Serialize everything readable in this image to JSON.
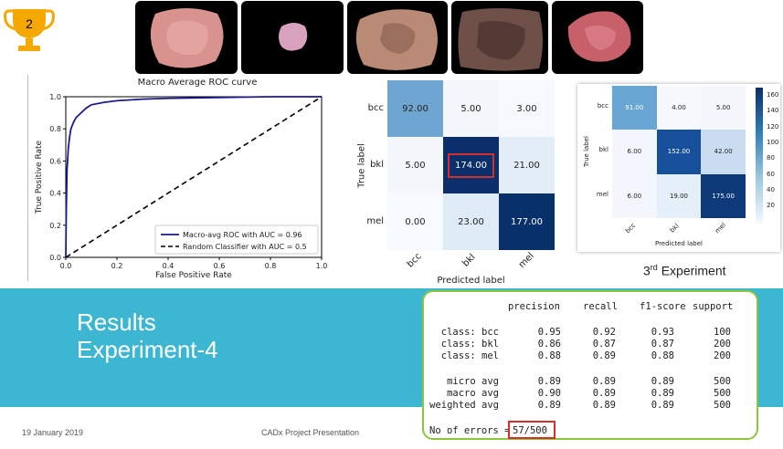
{
  "trophy": {
    "number": "2",
    "icon": "trophy-icon",
    "color": "#f5a800"
  },
  "lesion_images": [
    {
      "name": "lesion-image-1",
      "color": "#d9938f"
    },
    {
      "name": "lesion-image-2",
      "color": "#d8a2bf"
    },
    {
      "name": "lesion-image-3",
      "color": "#b98a76"
    },
    {
      "name": "lesion-image-4",
      "color": "#6e5048"
    },
    {
      "name": "lesion-image-5",
      "color": "#c8606a"
    }
  ],
  "roc_chart": {
    "title": "Macro Average ROC curve",
    "xlabel": "False Positive Rate",
    "ylabel": "True Positive Rate",
    "xticks": [
      "0.0",
      "0.2",
      "0.4",
      "0.6",
      "0.8",
      "1.0"
    ],
    "yticks": [
      "0.0",
      "0.2",
      "0.4",
      "0.6",
      "0.8",
      "1.0"
    ],
    "legend": [
      "Macro-avg ROC with AUC = 0.96",
      "Random Classifier with AUC = 0.5"
    ]
  },
  "chart_data": {
    "type": "line",
    "title": "Macro Average ROC curve",
    "xlabel": "False Positive Rate",
    "ylabel": "True Positive Rate",
    "xlim": [
      0,
      1
    ],
    "ylim": [
      0,
      1
    ],
    "legend_position": "bottom-right",
    "series": [
      {
        "name": "Macro-avg ROC with AUC = 0.96",
        "color": "#1a1a8c",
        "style": "solid",
        "x": [
          0,
          0.002,
          0.005,
          0.01,
          0.015,
          0.02,
          0.03,
          0.04,
          0.06,
          0.08,
          0.1,
          0.15,
          0.2,
          0.3,
          0.4,
          0.6,
          0.8,
          1.0
        ],
        "y": [
          0,
          0.3,
          0.55,
          0.68,
          0.75,
          0.8,
          0.84,
          0.87,
          0.9,
          0.93,
          0.95,
          0.965,
          0.975,
          0.985,
          0.99,
          0.995,
          1.0,
          1.0
        ]
      },
      {
        "name": "Random Classifier with AUC = 0.5",
        "color": "#000000",
        "style": "dashed",
        "x": [
          0,
          1
        ],
        "y": [
          0,
          1
        ]
      }
    ]
  },
  "confusion_matrix": {
    "ylabel": "True label",
    "xlabel": "Predicted label",
    "labels": [
      "bcc",
      "bkl",
      "mel"
    ],
    "values": [
      [
        "92.00",
        "5.00",
        "3.00"
      ],
      [
        "5.00",
        "174.00",
        "21.00"
      ],
      [
        "0.00",
        "23.00",
        "177.00"
      ]
    ],
    "colors": [
      [
        "#6ea6d1",
        "#f4f8fd",
        "#f6f9fe"
      ],
      [
        "#f4f8fd",
        "#0a2f6b",
        "#e2edf8"
      ],
      [
        "#f7fbff",
        "#deebf7",
        "#08306b"
      ]
    ],
    "text_colors": [
      [
        "#222222",
        "#222222",
        "#222222"
      ],
      [
        "#222222",
        "#ffffff",
        "#222222"
      ],
      [
        "#222222",
        "#222222",
        "#ffffff"
      ]
    ],
    "highlight_color": "#d32f2f"
  },
  "confusion_matrix_3": {
    "ylabel": "True label",
    "xlabel": "Predicted label",
    "labels": [
      "bcc",
      "bkl",
      "mel"
    ],
    "values": [
      [
        "91.00",
        "4.00",
        "5.00"
      ],
      [
        "6.00",
        "152.00",
        "42.00"
      ],
      [
        "6.00",
        "19.00",
        "175.00"
      ]
    ],
    "colors": [
      [
        "#6aa6d3",
        "#f5f9fe",
        "#f4f8fd"
      ],
      [
        "#f3f7fd",
        "#16509a",
        "#cadcf0"
      ],
      [
        "#f3f7fd",
        "#e5eff9",
        "#0e3a7a"
      ]
    ],
    "text_colors": [
      [
        "#ffffff",
        "#222222",
        "#222222"
      ],
      [
        "#222222",
        "#ffffff",
        "#222222"
      ],
      [
        "#222222",
        "#222222",
        "#ffffff"
      ]
    ],
    "colorbar_ticks": [
      "160",
      "140",
      "120",
      "100",
      "80",
      "60",
      "40",
      "20"
    ],
    "caption_main": "3",
    "caption_sup": "rd",
    "caption_rest": " Experiment"
  },
  "results": {
    "line1": "Results",
    "line2": "Experiment-4",
    "band_color": "#3db6d1"
  },
  "report": {
    "headers": [
      "precision",
      "recall",
      "f1-score",
      "support"
    ],
    "rows": [
      {
        "label": "class: bcc",
        "values": [
          "0.95",
          "0.92",
          "0.93",
          "100"
        ]
      },
      {
        "label": "class: bkl",
        "values": [
          "0.86",
          "0.87",
          "0.87",
          "200"
        ]
      },
      {
        "label": "class: mel",
        "values": [
          "0.88",
          "0.89",
          "0.88",
          "200"
        ]
      },
      {
        "label": "micro avg",
        "values": [
          "0.89",
          "0.89",
          "0.89",
          "500"
        ]
      },
      {
        "label": "macro avg",
        "values": [
          "0.90",
          "0.89",
          "0.89",
          "500"
        ]
      },
      {
        "label": "weighted avg",
        "values": [
          "0.89",
          "0.89",
          "0.89",
          "500"
        ]
      }
    ],
    "errors_label": "No of errors =",
    "errors_value": "57/500",
    "border_color": "#8cc63e"
  },
  "footer": {
    "date": "19 January 2019",
    "title": "CADx Project Presentation"
  }
}
